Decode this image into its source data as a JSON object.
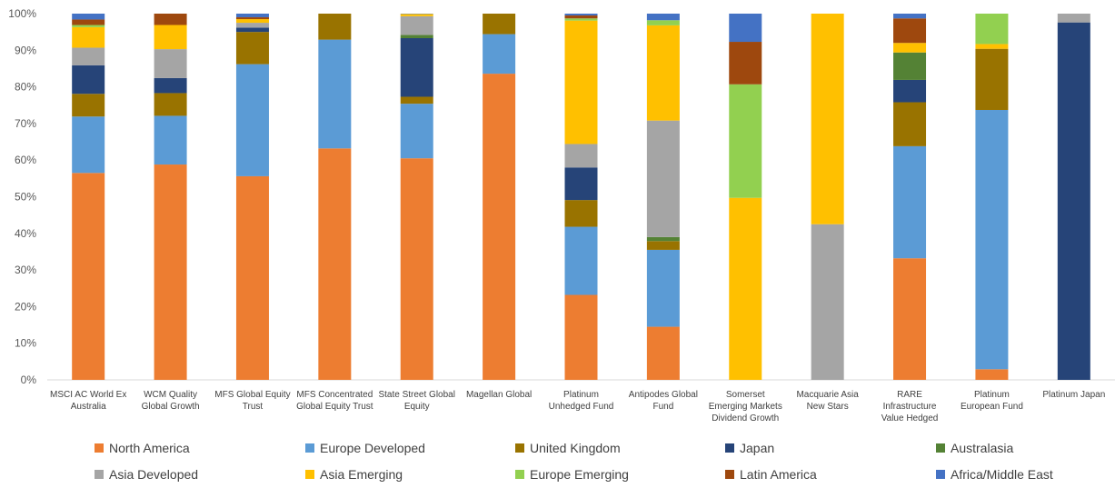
{
  "chart_data": {
    "type": "bar",
    "stacked": true,
    "normalized": true,
    "ylim": [
      0,
      100
    ],
    "yticks": [
      "0%",
      "10%",
      "20%",
      "30%",
      "40%",
      "50%",
      "60%",
      "70%",
      "80%",
      "90%",
      "100%"
    ],
    "grid": false,
    "legend_position": "bottom",
    "categories": [
      [
        "MSCI AC World Ex",
        "Australia"
      ],
      [
        "WCM Quality",
        "Global Growth"
      ],
      [
        "MFS Global Equity",
        "Trust"
      ],
      [
        "MFS Concentrated",
        "Global Equity Trust"
      ],
      [
        "State Street Global",
        "Equity"
      ],
      [
        "Magellan Global"
      ],
      [
        "Platinum",
        "Unhedged Fund"
      ],
      [
        "Antipodes Global",
        "Fund"
      ],
      [
        "Somerset",
        "Emerging Markets",
        "Dividend Growth"
      ],
      [
        "Macquarie Asia",
        "New Stars"
      ],
      [
        "RARE",
        "Infrastructure",
        "Value Hedged"
      ],
      [
        "Platinum",
        "European Fund"
      ],
      [
        "Platinum Japan"
      ]
    ],
    "series": [
      {
        "name": "North America",
        "color": "#ED7D31",
        "values": [
          56.5,
          58.8,
          55.6,
          63.2,
          60.5,
          83.6,
          23.2,
          14.5,
          0,
          0,
          33.2,
          2.9,
          0
        ]
      },
      {
        "name": "Europe Developed",
        "color": "#5B9BD5",
        "values": [
          15.4,
          13.3,
          30.6,
          29.7,
          14.9,
          10.8,
          18.6,
          21.0,
          0,
          0,
          30.6,
          70.8,
          0
        ]
      },
      {
        "name": "United Kingdom",
        "color": "#997300",
        "values": [
          6.2,
          6.2,
          8.8,
          7.1,
          1.9,
          5.6,
          7.3,
          2.4,
          0,
          0,
          12.0,
          16.7,
          0
        ]
      },
      {
        "name": "Japan",
        "color": "#264478",
        "values": [
          7.8,
          4.1,
          1.2,
          0,
          16.0,
          0,
          8.9,
          0,
          0,
          0,
          6.1,
          0,
          97.6
        ]
      },
      {
        "name": "Australasia",
        "color": "#548235",
        "values": [
          0,
          0,
          0,
          0,
          0.9,
          0,
          0,
          1.1,
          0,
          0,
          7.5,
          0,
          0
        ]
      },
      {
        "name": "Asia Developed",
        "color": "#A5A5A5",
        "values": [
          4.8,
          7.9,
          1.3,
          0,
          5.1,
          0,
          6.4,
          31.8,
          0,
          42.5,
          0,
          0,
          2.4
        ]
      },
      {
        "name": "Asia Emerging",
        "color": "#FFC000",
        "values": [
          5.6,
          6.6,
          1.0,
          0,
          0.6,
          0,
          33.7,
          26.0,
          49.7,
          57.5,
          2.6,
          1.3,
          0
        ]
      },
      {
        "name": "Europe Emerging",
        "color": "#92D050",
        "values": [
          0.6,
          0,
          0,
          0,
          0,
          0,
          0.6,
          1.4,
          31.0,
          0,
          0,
          8.3,
          0
        ]
      },
      {
        "name": "Latin America",
        "color": "#9E480E",
        "values": [
          1.5,
          3.1,
          0.5,
          0,
          0,
          0,
          0.8,
          0,
          11.6,
          0,
          6.7,
          0,
          0
        ]
      },
      {
        "name": "Africa/Middle East",
        "color": "#4472C4",
        "values": [
          1.6,
          0,
          1.0,
          0,
          0.1,
          0,
          0.5,
          1.8,
          7.7,
          0,
          1.3,
          0,
          0
        ]
      }
    ]
  }
}
